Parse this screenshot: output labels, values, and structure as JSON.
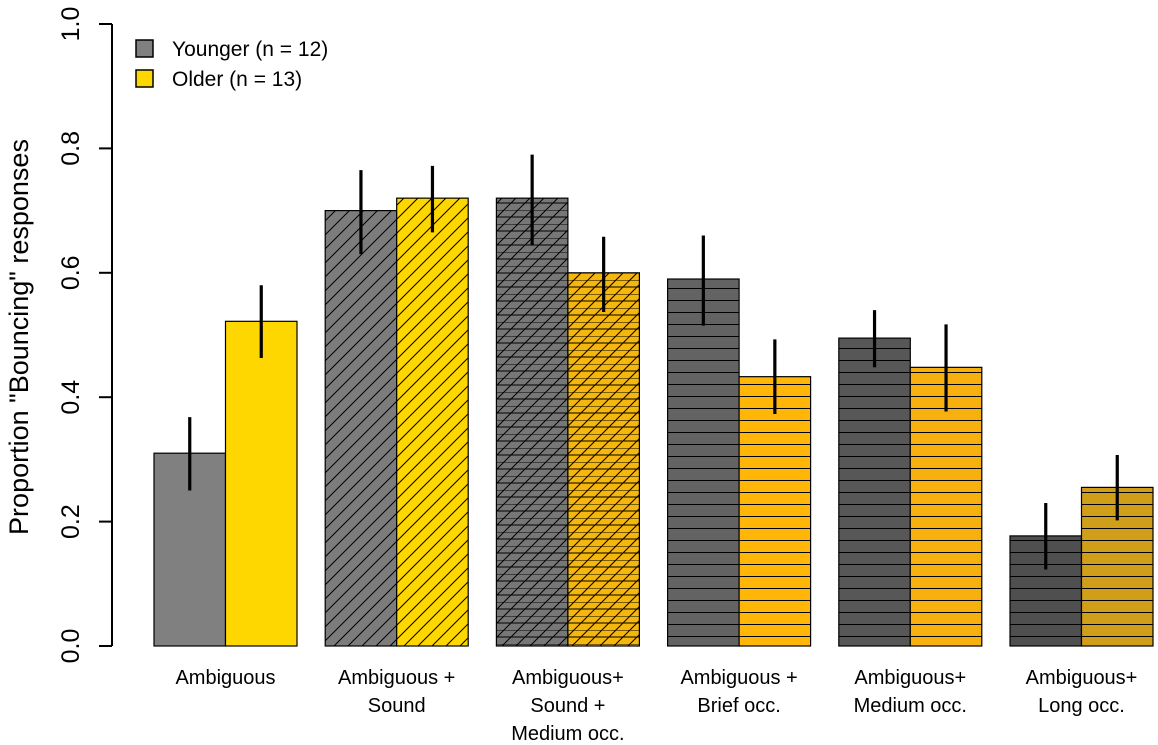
{
  "chart_data": {
    "type": "bar",
    "title": "",
    "ylabel": "Proportion \"Bouncing\" responses",
    "xlabel": "",
    "ylim": [
      0,
      1.0
    ],
    "yticks": [
      "0.0",
      "0.2",
      "0.4",
      "0.6",
      "0.8",
      "1.0"
    ],
    "legend_position": "top-left",
    "categories": [
      [
        "Ambiguous"
      ],
      [
        "Ambiguous +",
        "Sound"
      ],
      [
        "Ambiguous+",
        "Sound +",
        "Medium occ."
      ],
      [
        "Ambiguous +",
        "Brief occ."
      ],
      [
        "Ambiguous+",
        "Medium occ."
      ],
      [
        "Ambiguous+",
        "Long occ."
      ]
    ],
    "category_patterns": [
      "none",
      "diagonal",
      "crosshatch",
      "horizontal",
      "horizontal",
      "horizontal"
    ],
    "series": [
      {
        "name": "Younger (n = 12)",
        "legend_color": "#808080",
        "colors": [
          "#808080",
          "#7c7c7c",
          "#777777",
          "#636363",
          "#575757",
          "#4f4f4f"
        ],
        "values": [
          0.31,
          0.7,
          0.72,
          0.59,
          0.495,
          0.177
        ],
        "err_low": [
          0.25,
          0.63,
          0.645,
          0.515,
          0.448,
          0.123
        ],
        "err_high": [
          0.368,
          0.765,
          0.79,
          0.66,
          0.54,
          0.23
        ]
      },
      {
        "name": "Older (n = 13)",
        "legend_color": "#ffd700",
        "colors": [
          "#ffd700",
          "#ffd700",
          "#f5b70d",
          "#ffb606",
          "#f7b00e",
          "#d19e1a"
        ],
        "values": [
          0.522,
          0.72,
          0.6,
          0.433,
          0.448,
          0.255
        ],
        "err_low": [
          0.463,
          0.665,
          0.537,
          0.373,
          0.377,
          0.202
        ],
        "err_high": [
          0.58,
          0.772,
          0.658,
          0.493,
          0.517,
          0.307
        ]
      }
    ]
  }
}
